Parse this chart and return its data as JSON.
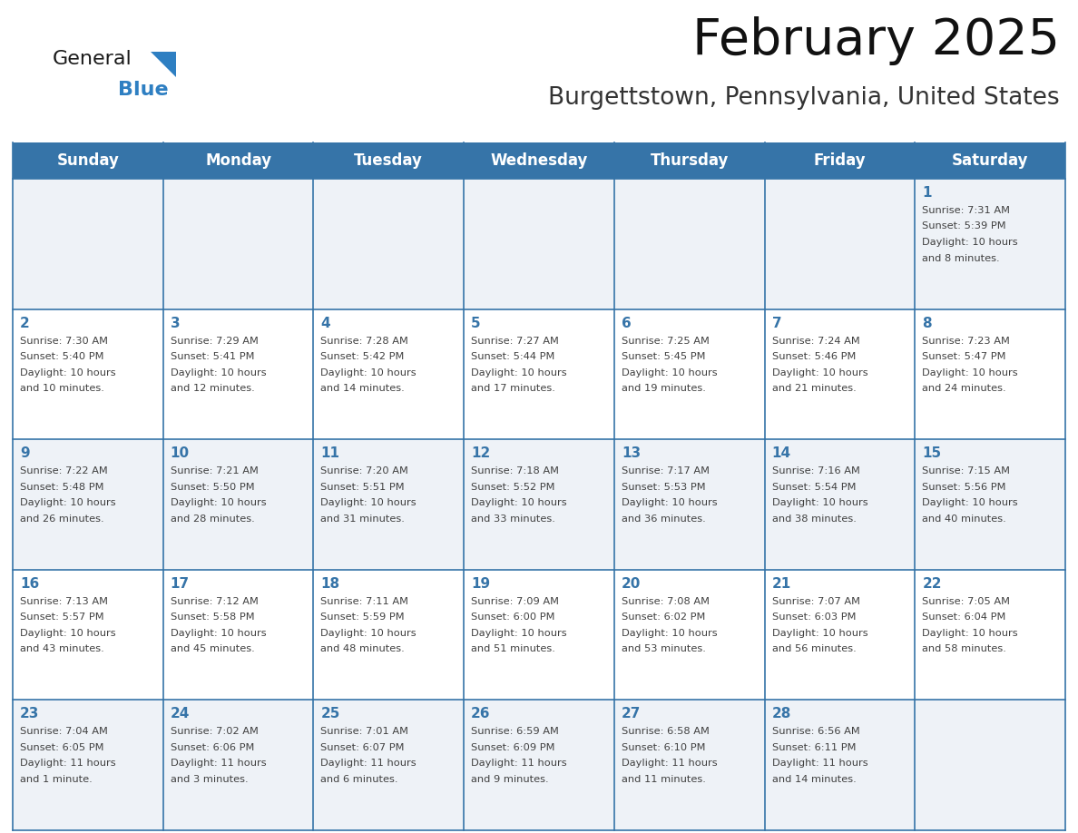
{
  "title": "February 2025",
  "subtitle": "Burgettstown, Pennsylvania, United States",
  "header_bg": "#3674a8",
  "header_text_color": "#ffffff",
  "days_of_week": [
    "Sunday",
    "Monday",
    "Tuesday",
    "Wednesday",
    "Thursday",
    "Friday",
    "Saturday"
  ],
  "cell_bg_odd": "#eef2f7",
  "cell_bg_even": "#ffffff",
  "cell_border_color": "#3674a8",
  "day_number_color": "#3674a8",
  "info_text_color": "#404040",
  "logo_general_color": "#1a1a1a",
  "logo_blue_color": "#2e7fc2",
  "logo_triangle_color": "#2e7fc2",
  "title_color": "#111111",
  "subtitle_color": "#333333",
  "weeks": [
    [
      {
        "day": "",
        "lines": []
      },
      {
        "day": "",
        "lines": []
      },
      {
        "day": "",
        "lines": []
      },
      {
        "day": "",
        "lines": []
      },
      {
        "day": "",
        "lines": []
      },
      {
        "day": "",
        "lines": []
      },
      {
        "day": "1",
        "lines": [
          "Sunrise: 7:31 AM",
          "Sunset: 5:39 PM",
          "Daylight: 10 hours",
          "and 8 minutes."
        ]
      }
    ],
    [
      {
        "day": "2",
        "lines": [
          "Sunrise: 7:30 AM",
          "Sunset: 5:40 PM",
          "Daylight: 10 hours",
          "and 10 minutes."
        ]
      },
      {
        "day": "3",
        "lines": [
          "Sunrise: 7:29 AM",
          "Sunset: 5:41 PM",
          "Daylight: 10 hours",
          "and 12 minutes."
        ]
      },
      {
        "day": "4",
        "lines": [
          "Sunrise: 7:28 AM",
          "Sunset: 5:42 PM",
          "Daylight: 10 hours",
          "and 14 minutes."
        ]
      },
      {
        "day": "5",
        "lines": [
          "Sunrise: 7:27 AM",
          "Sunset: 5:44 PM",
          "Daylight: 10 hours",
          "and 17 minutes."
        ]
      },
      {
        "day": "6",
        "lines": [
          "Sunrise: 7:25 AM",
          "Sunset: 5:45 PM",
          "Daylight: 10 hours",
          "and 19 minutes."
        ]
      },
      {
        "day": "7",
        "lines": [
          "Sunrise: 7:24 AM",
          "Sunset: 5:46 PM",
          "Daylight: 10 hours",
          "and 21 minutes."
        ]
      },
      {
        "day": "8",
        "lines": [
          "Sunrise: 7:23 AM",
          "Sunset: 5:47 PM",
          "Daylight: 10 hours",
          "and 24 minutes."
        ]
      }
    ],
    [
      {
        "day": "9",
        "lines": [
          "Sunrise: 7:22 AM",
          "Sunset: 5:48 PM",
          "Daylight: 10 hours",
          "and 26 minutes."
        ]
      },
      {
        "day": "10",
        "lines": [
          "Sunrise: 7:21 AM",
          "Sunset: 5:50 PM",
          "Daylight: 10 hours",
          "and 28 minutes."
        ]
      },
      {
        "day": "11",
        "lines": [
          "Sunrise: 7:20 AM",
          "Sunset: 5:51 PM",
          "Daylight: 10 hours",
          "and 31 minutes."
        ]
      },
      {
        "day": "12",
        "lines": [
          "Sunrise: 7:18 AM",
          "Sunset: 5:52 PM",
          "Daylight: 10 hours",
          "and 33 minutes."
        ]
      },
      {
        "day": "13",
        "lines": [
          "Sunrise: 7:17 AM",
          "Sunset: 5:53 PM",
          "Daylight: 10 hours",
          "and 36 minutes."
        ]
      },
      {
        "day": "14",
        "lines": [
          "Sunrise: 7:16 AM",
          "Sunset: 5:54 PM",
          "Daylight: 10 hours",
          "and 38 minutes."
        ]
      },
      {
        "day": "15",
        "lines": [
          "Sunrise: 7:15 AM",
          "Sunset: 5:56 PM",
          "Daylight: 10 hours",
          "and 40 minutes."
        ]
      }
    ],
    [
      {
        "day": "16",
        "lines": [
          "Sunrise: 7:13 AM",
          "Sunset: 5:57 PM",
          "Daylight: 10 hours",
          "and 43 minutes."
        ]
      },
      {
        "day": "17",
        "lines": [
          "Sunrise: 7:12 AM",
          "Sunset: 5:58 PM",
          "Daylight: 10 hours",
          "and 45 minutes."
        ]
      },
      {
        "day": "18",
        "lines": [
          "Sunrise: 7:11 AM",
          "Sunset: 5:59 PM",
          "Daylight: 10 hours",
          "and 48 minutes."
        ]
      },
      {
        "day": "19",
        "lines": [
          "Sunrise: 7:09 AM",
          "Sunset: 6:00 PM",
          "Daylight: 10 hours",
          "and 51 minutes."
        ]
      },
      {
        "day": "20",
        "lines": [
          "Sunrise: 7:08 AM",
          "Sunset: 6:02 PM",
          "Daylight: 10 hours",
          "and 53 minutes."
        ]
      },
      {
        "day": "21",
        "lines": [
          "Sunrise: 7:07 AM",
          "Sunset: 6:03 PM",
          "Daylight: 10 hours",
          "and 56 minutes."
        ]
      },
      {
        "day": "22",
        "lines": [
          "Sunrise: 7:05 AM",
          "Sunset: 6:04 PM",
          "Daylight: 10 hours",
          "and 58 minutes."
        ]
      }
    ],
    [
      {
        "day": "23",
        "lines": [
          "Sunrise: 7:04 AM",
          "Sunset: 6:05 PM",
          "Daylight: 11 hours",
          "and 1 minute."
        ]
      },
      {
        "day": "24",
        "lines": [
          "Sunrise: 7:02 AM",
          "Sunset: 6:06 PM",
          "Daylight: 11 hours",
          "and 3 minutes."
        ]
      },
      {
        "day": "25",
        "lines": [
          "Sunrise: 7:01 AM",
          "Sunset: 6:07 PM",
          "Daylight: 11 hours",
          "and 6 minutes."
        ]
      },
      {
        "day": "26",
        "lines": [
          "Sunrise: 6:59 AM",
          "Sunset: 6:09 PM",
          "Daylight: 11 hours",
          "and 9 minutes."
        ]
      },
      {
        "day": "27",
        "lines": [
          "Sunrise: 6:58 AM",
          "Sunset: 6:10 PM",
          "Daylight: 11 hours",
          "and 11 minutes."
        ]
      },
      {
        "day": "28",
        "lines": [
          "Sunrise: 6:56 AM",
          "Sunset: 6:11 PM",
          "Daylight: 11 hours",
          "and 14 minutes."
        ]
      },
      {
        "day": "",
        "lines": []
      }
    ]
  ]
}
